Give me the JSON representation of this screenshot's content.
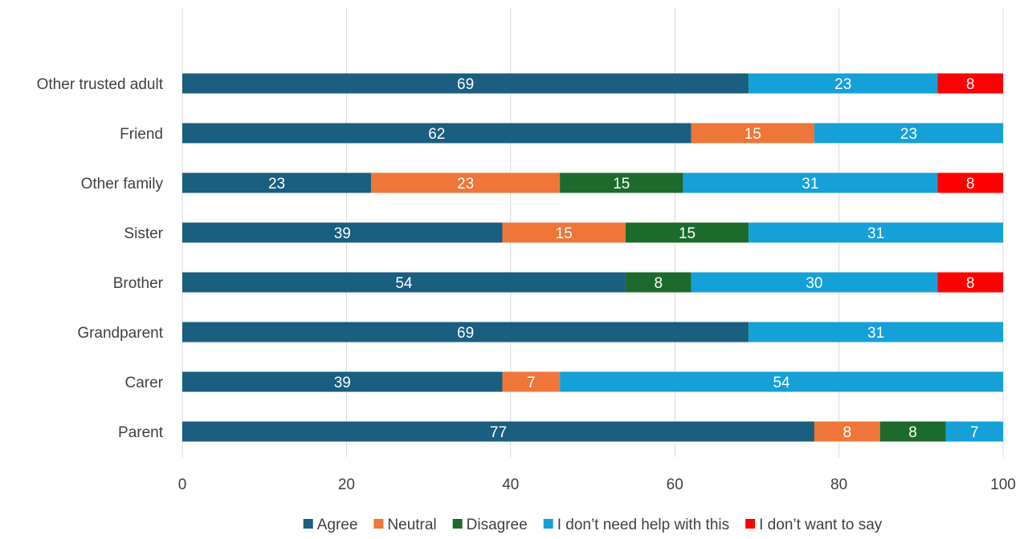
{
  "chart_data": {
    "type": "bar",
    "orientation": "horizontal",
    "stacked": true,
    "categories": [
      "Parent",
      "Carer",
      "Grandparent",
      "Brother",
      "Sister",
      "Other family",
      "Friend",
      "Other trusted adult"
    ],
    "series": [
      {
        "name": "Agree",
        "color": "#1a5e80",
        "values": [
          77,
          39,
          69,
          54,
          39,
          23,
          62,
          69
        ]
      },
      {
        "name": "Neutral",
        "color": "#ed7638",
        "values": [
          8,
          7,
          0,
          0,
          15,
          23,
          15,
          0
        ]
      },
      {
        "name": "Disagree",
        "color": "#1c6b2c",
        "values": [
          8,
          0,
          0,
          8,
          15,
          15,
          0,
          0
        ]
      },
      {
        "name": "I don’t need help with this",
        "color": "#16a0d8",
        "values": [
          7,
          54,
          31,
          30,
          31,
          31,
          23,
          23
        ]
      },
      {
        "name": "I don’t want to say",
        "color": "#ff0000",
        "values": [
          0,
          0,
          0,
          8,
          0,
          8,
          0,
          8
        ]
      }
    ],
    "xlim": [
      0,
      100
    ],
    "xticks": [
      "0",
      "20",
      "40",
      "60",
      "80",
      "100"
    ],
    "grid": true,
    "legend_position": "bottom"
  }
}
